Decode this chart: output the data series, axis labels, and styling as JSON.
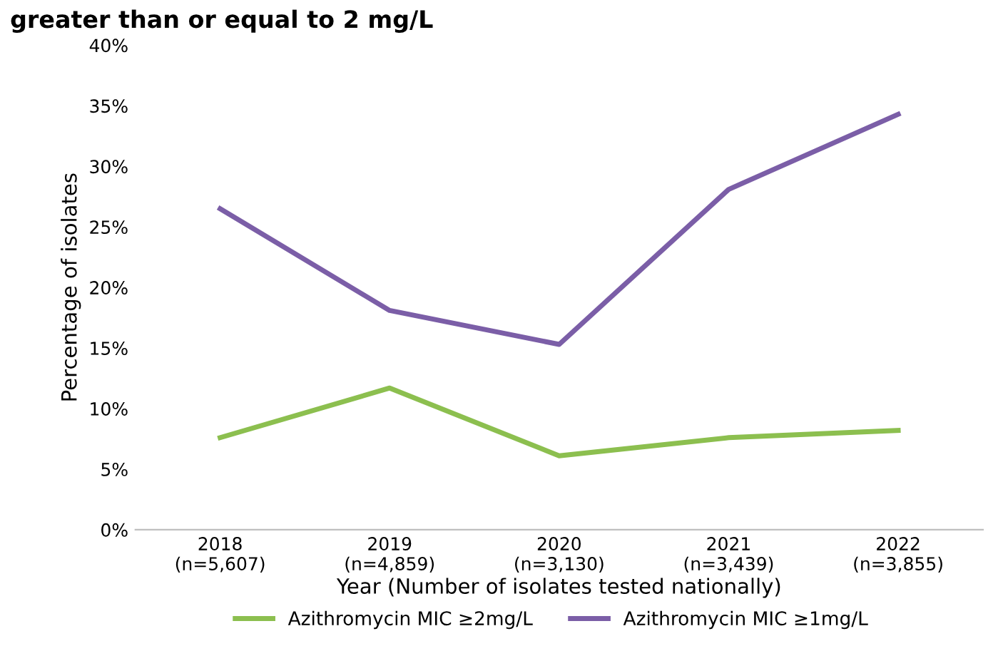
{
  "chart_data": {
    "type": "line",
    "title": "greater than or equal to 2 mg/L",
    "categories": [
      "2018\n(n=5,607)",
      "2019\n(n=4,859)",
      "2020\n(n=3,130)",
      "2021\n(n=3,439)",
      "2022\n(n=3,855)"
    ],
    "series": [
      {
        "name": "Azithromycin MIC ≥2mg/L",
        "color": "#8cbf4f",
        "values": [
          7.6,
          11.7,
          6.1,
          7.6,
          8.2
        ]
      },
      {
        "name": "Azithromycin MIC ≥1mg/L",
        "color": "#7b5ea7",
        "values": [
          26.5,
          18.1,
          15.3,
          28.1,
          34.3
        ]
      }
    ],
    "xlabel": "Year (Number of isolates tested nationally)",
    "ylabel": "Percentage of isolates",
    "ylim": [
      0,
      40
    ],
    "yticks": [
      {
        "value": 0,
        "label": "0%"
      },
      {
        "value": 5,
        "label": "5%"
      },
      {
        "value": 10,
        "label": "10%"
      },
      {
        "value": 15,
        "label": "15%"
      },
      {
        "value": 20,
        "label": "20%"
      },
      {
        "value": 25,
        "label": "25%"
      },
      {
        "value": 30,
        "label": "30%"
      },
      {
        "value": 35,
        "label": "35%"
      },
      {
        "value": 40,
        "label": "40%"
      }
    ],
    "grid": false,
    "legend": "bottom",
    "marker": "none",
    "line_style": "solid"
  }
}
